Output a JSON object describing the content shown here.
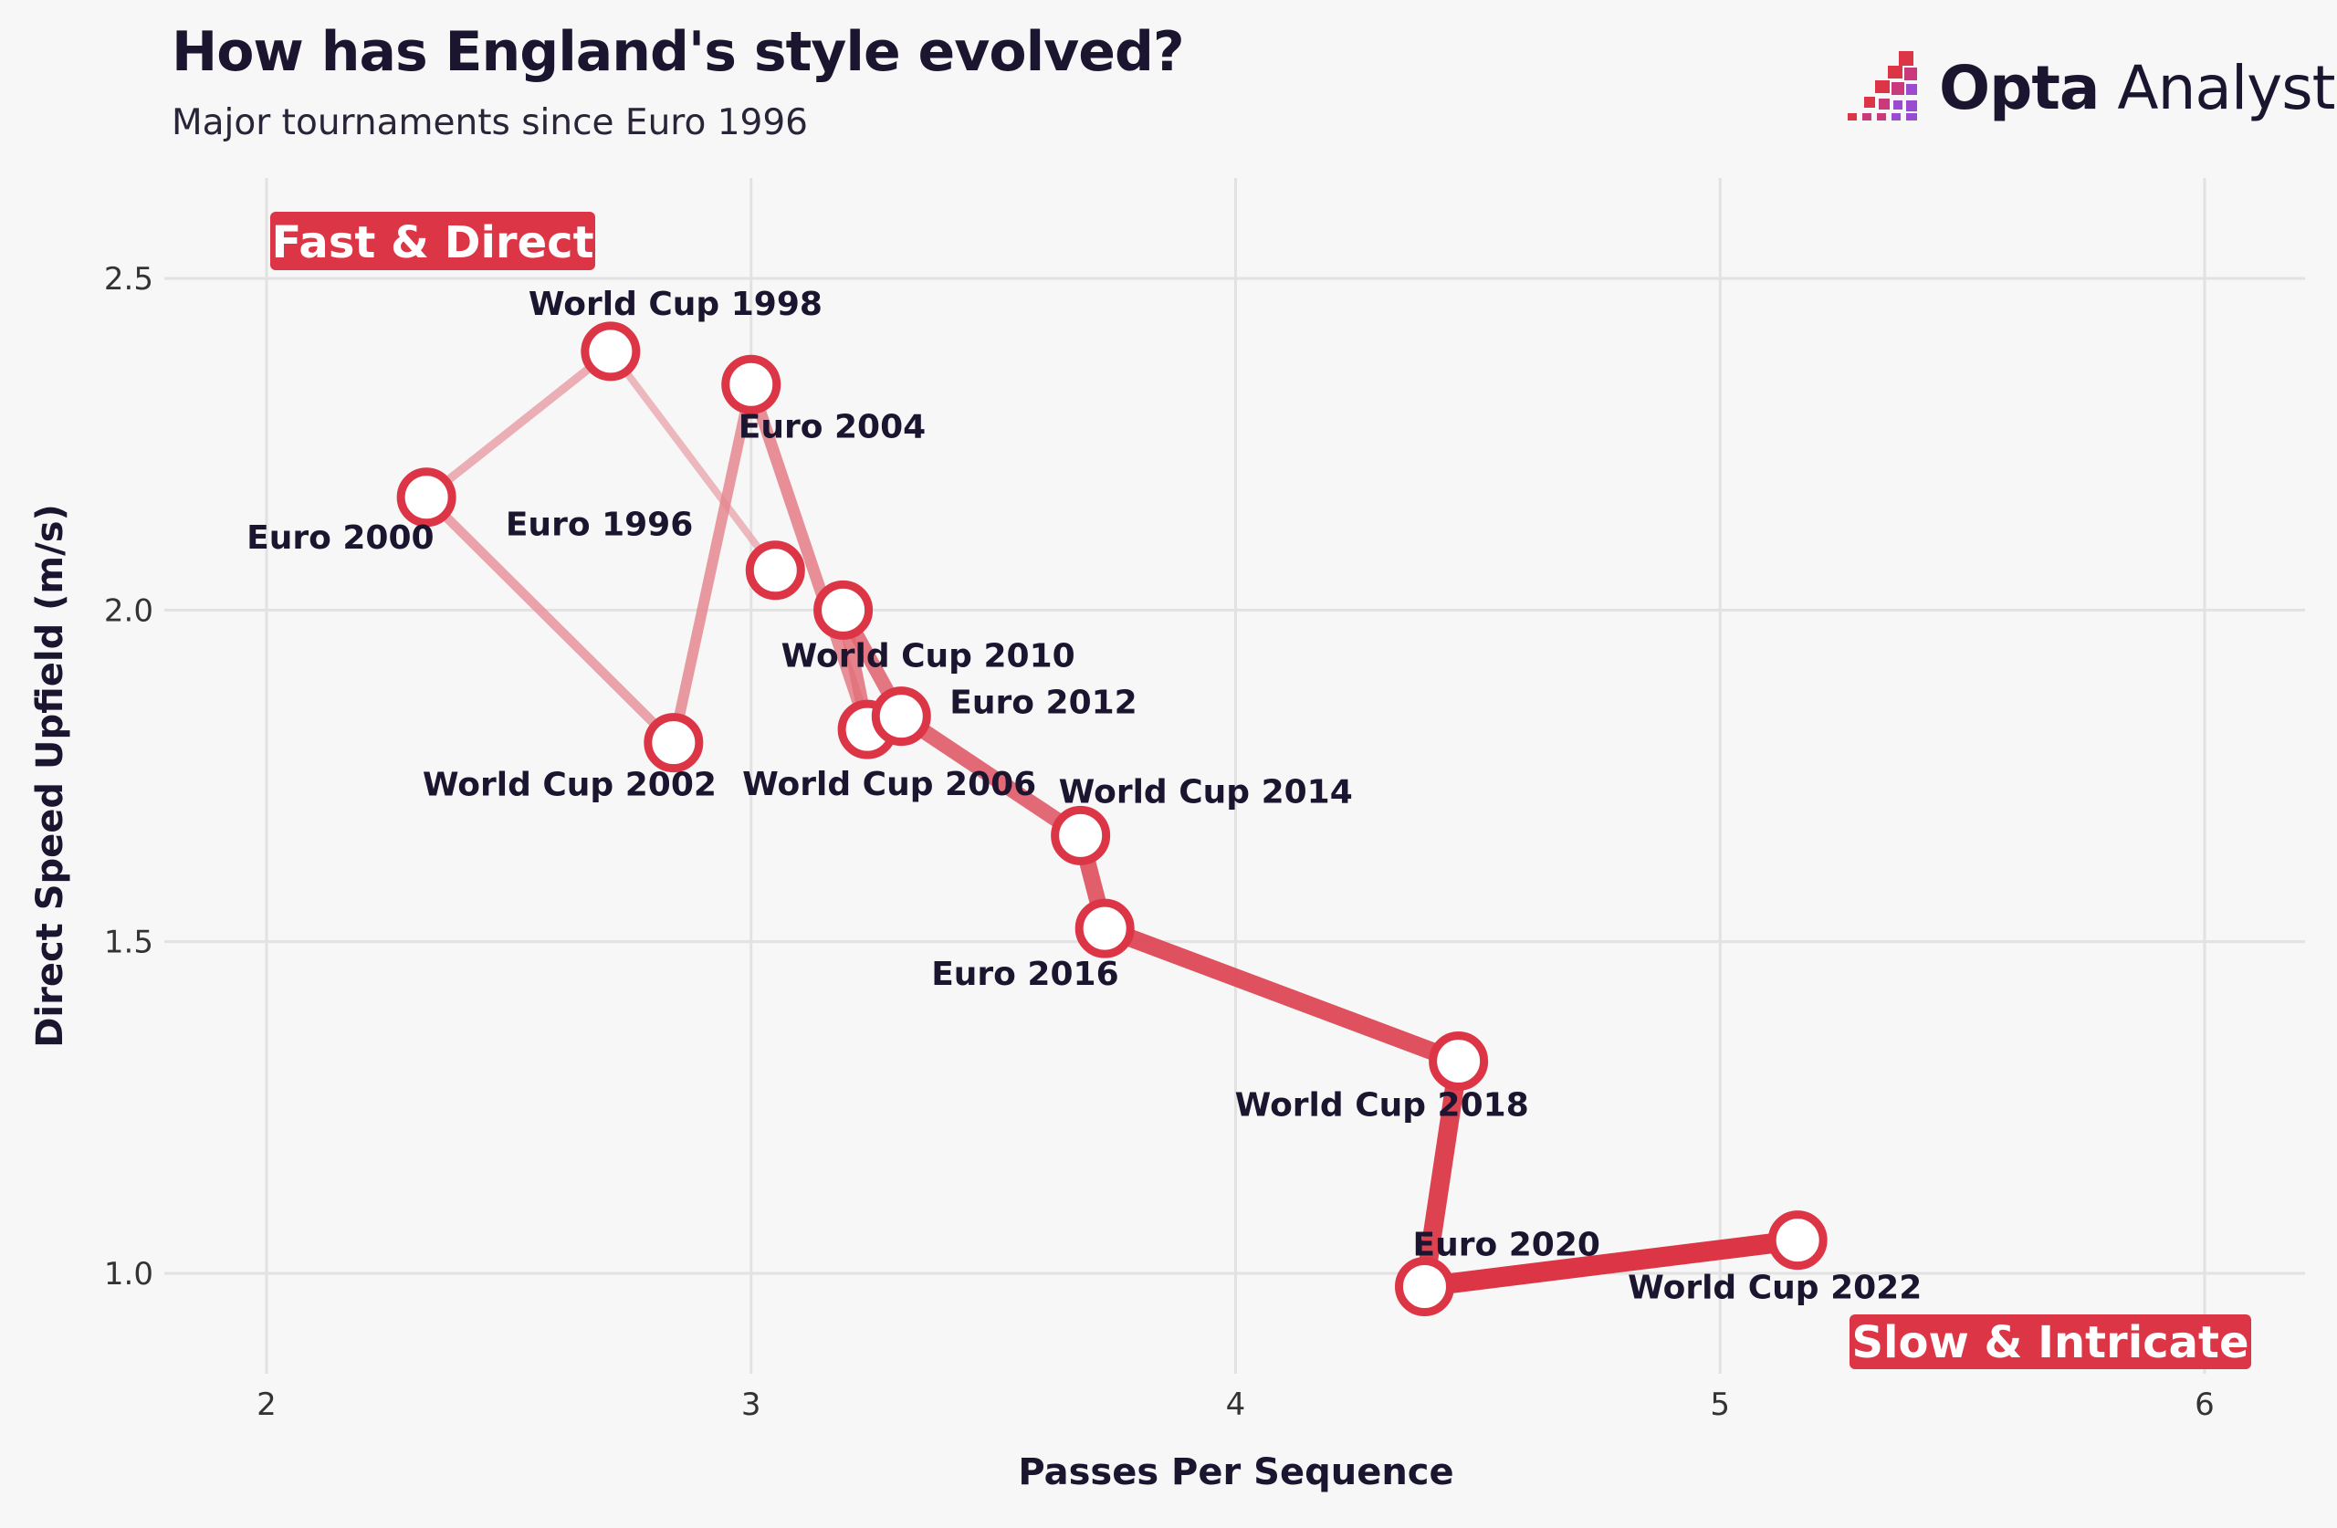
{
  "header": {
    "title": "How has England's style evolved?",
    "subtitle": "Major tournaments since Euro 1996",
    "logo_brand": "Opta",
    "logo_product": "Analyst"
  },
  "colors": {
    "accent": "#dc3545",
    "accent_light": "#e9a3aa",
    "background": "#f7f7f7",
    "grid": "#e2e2e2",
    "text": "#1b1530"
  },
  "chart_data": {
    "type": "line",
    "title": "How has England's style evolved?",
    "subtitle": "Major tournaments since Euro 1996",
    "xlabel": "Passes Per Sequence",
    "ylabel": "Direct Speed Upfield (m/s)",
    "xlim": [
      1.8,
      6.2
    ],
    "ylim": [
      0.87,
      2.65
    ],
    "x_ticks": [
      2,
      3,
      4,
      5,
      6
    ],
    "y_ticks": [
      1.0,
      1.5,
      2.0,
      2.5
    ],
    "x_tick_labels": [
      "2",
      "3",
      "4",
      "5",
      "6"
    ],
    "y_tick_labels": [
      "1.0",
      "1.5",
      "2.0",
      "2.5"
    ],
    "grid": true,
    "corner_labels": {
      "top_left": "Fast & Direct",
      "bottom_right": "Slow & Intricate"
    },
    "points": [
      {
        "name": "Euro 1996",
        "x": 3.05,
        "y": 2.06
      },
      {
        "name": "World Cup 1998",
        "x": 2.71,
        "y": 2.39
      },
      {
        "name": "Euro 2000",
        "x": 2.33,
        "y": 2.17
      },
      {
        "name": "World Cup 2002",
        "x": 2.84,
        "y": 1.8
      },
      {
        "name": "Euro 2004",
        "x": 3.0,
        "y": 2.34
      },
      {
        "name": "World Cup 2006",
        "x": 3.24,
        "y": 1.82
      },
      {
        "name": "World Cup 2010",
        "x": 3.19,
        "y": 2.0
      },
      {
        "name": "Euro 2012",
        "x": 3.31,
        "y": 1.84
      },
      {
        "name": "World Cup 2014",
        "x": 3.68,
        "y": 1.66
      },
      {
        "name": "Euro 2016",
        "x": 3.73,
        "y": 1.52
      },
      {
        "name": "World Cup 2018",
        "x": 4.46,
        "y": 1.32
      },
      {
        "name": "Euro 2020",
        "x": 4.39,
        "y": 0.98
      },
      {
        "name": "World Cup 2022",
        "x": 5.16,
        "y": 1.05
      }
    ]
  }
}
